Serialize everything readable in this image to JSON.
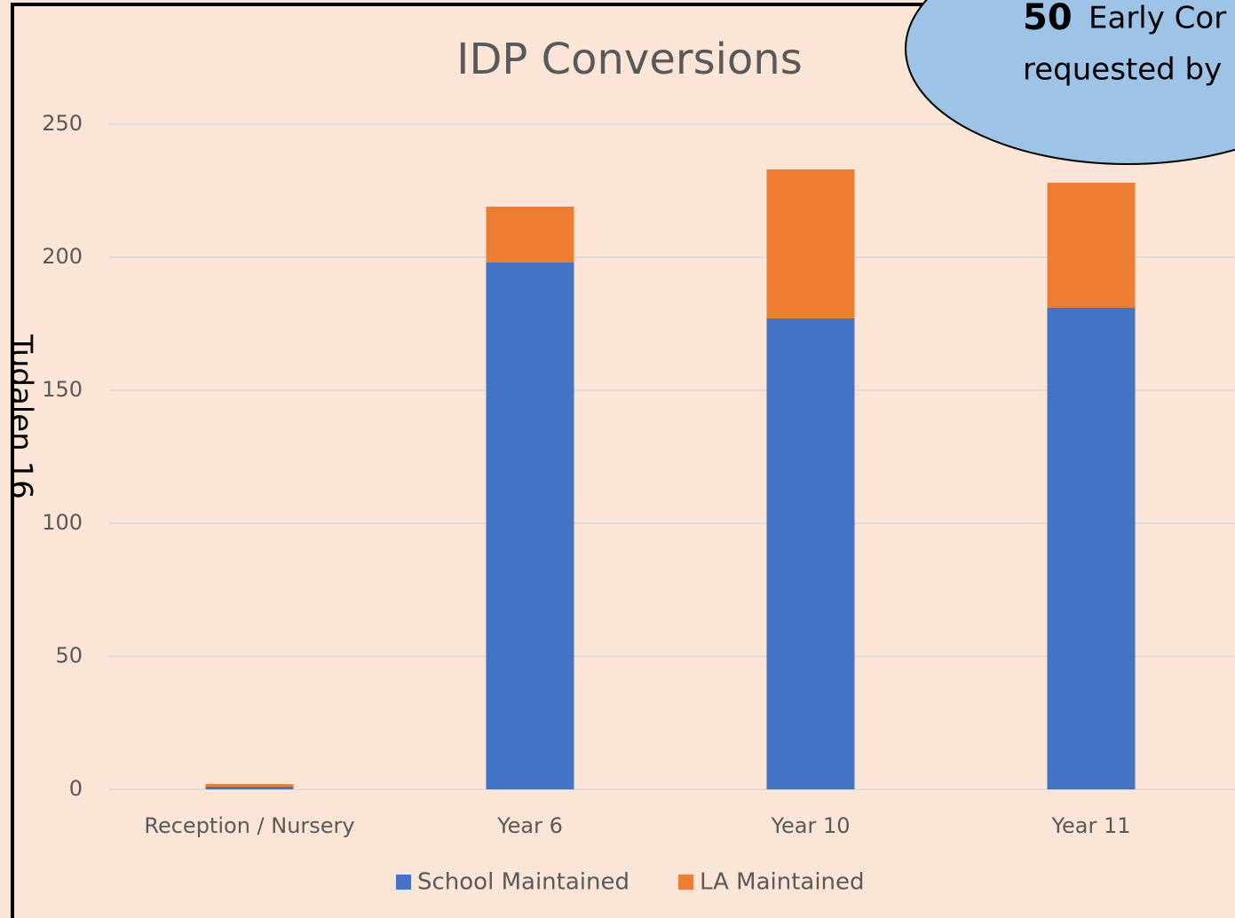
{
  "side_label": "Tudalen 16",
  "callout": {
    "number": "50",
    "line1": "Early Cor",
    "line2": "requested by"
  },
  "chart_data": {
    "type": "stacked_bar",
    "title": "IDP Conversions",
    "categories": [
      "Reception / Nursery",
      "Year 6",
      "Year 10",
      "Year 11"
    ],
    "series": [
      {
        "name": "School Maintained",
        "color": "#4472c4",
        "values": [
          1,
          198,
          177,
          181
        ]
      },
      {
        "name": "LA Maintained",
        "color": "#ed7d31",
        "values": [
          1,
          21,
          56,
          47
        ]
      }
    ],
    "ylim": [
      0,
      250
    ],
    "yticks": [
      0,
      50,
      100,
      150,
      200,
      250
    ],
    "grid": true,
    "legend": "bottom"
  }
}
